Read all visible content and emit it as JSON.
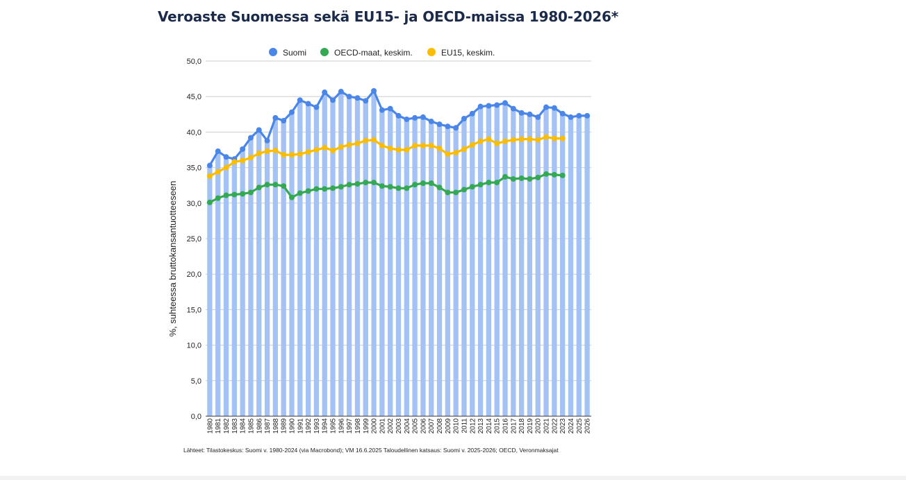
{
  "page": {
    "title": "Veroaste Suomessa sekä EU15- ja OECD-maissa 1980-2026*",
    "source": "Lähteet: Tilastokeskus: Suomi v. 1980-2024 (via Macrobond); VM 16.6.2025 Taloudellinen katsaus: Suomi v. 2025-2026; OECD, Veronmaksajat"
  },
  "colors": {
    "suomi": "#4a86e8",
    "oecd": "#34a853",
    "eu15": "#fbbc04",
    "bar_fill": "#a4c2f4",
    "grid": "#cccccc",
    "axis": "#333333",
    "title": "#1b2a4a"
  },
  "chart_data": {
    "type": "line",
    "title": "Veroaste Suomessa sekä EU15- ja OECD-maissa 1980-2026*",
    "xlabel": "",
    "ylabel": "%, suhteessa bruttokansantuotteeseen",
    "ylim": [
      0,
      50
    ],
    "yticks": [
      "0,0",
      "5,0",
      "10,0",
      "15,0",
      "20,0",
      "25,0",
      "30,0",
      "35,0",
      "40,0",
      "45,0",
      "50,0"
    ],
    "grid": true,
    "legend_position": "top",
    "categories": [
      "1980",
      "1981",
      "1982",
      "1983",
      "1984",
      "1985",
      "1986",
      "1987",
      "1988",
      "1989",
      "1990",
      "1991",
      "1992",
      "1993",
      "1994",
      "1995",
      "1996",
      "1997",
      "1998",
      "1999",
      "2000",
      "2001",
      "2002",
      "2003",
      "2004",
      "2005",
      "2006",
      "2007",
      "2008",
      "2009",
      "2010",
      "2011",
      "2012",
      "2013",
      "2014",
      "2015",
      "2016",
      "2017",
      "2018",
      "2019",
      "2020",
      "2021",
      "2022",
      "2023",
      "2024",
      "2025",
      "2026"
    ],
    "bars": {
      "series": "Suomi",
      "values": [
        35.3,
        37.3,
        36.5,
        36.2,
        37.6,
        39.2,
        40.3,
        38.8,
        42.0,
        41.6,
        42.8,
        44.5,
        44.0,
        43.5,
        45.6,
        44.5,
        45.7,
        45.0,
        44.8,
        44.4,
        45.8,
        43.1,
        43.3,
        42.3,
        41.8,
        42.0,
        42.1,
        41.5,
        41.1,
        40.8,
        40.6,
        41.9,
        42.6,
        43.6,
        43.7,
        43.8,
        44.1,
        43.3,
        42.7,
        42.5,
        42.1,
        43.5,
        43.4,
        42.6,
        42.1,
        42.3,
        42.3
      ]
    },
    "series": [
      {
        "name": "Suomi",
        "values": [
          35.3,
          37.3,
          36.5,
          36.2,
          37.6,
          39.2,
          40.3,
          38.8,
          42.0,
          41.6,
          42.8,
          44.5,
          44.0,
          43.5,
          45.6,
          44.5,
          45.7,
          45.0,
          44.8,
          44.4,
          45.8,
          43.1,
          43.3,
          42.3,
          41.8,
          42.0,
          42.1,
          41.5,
          41.1,
          40.8,
          40.6,
          41.9,
          42.6,
          43.6,
          43.7,
          43.8,
          44.1,
          43.3,
          42.7,
          42.5,
          42.1,
          43.5,
          43.4,
          42.6,
          42.1,
          42.3,
          42.3
        ]
      },
      {
        "name": "OECD-maat, keskim.",
        "values": [
          30.1,
          30.7,
          31.1,
          31.2,
          31.3,
          31.5,
          32.2,
          32.6,
          32.6,
          32.4,
          30.8,
          31.4,
          31.7,
          32.0,
          32.0,
          32.1,
          32.3,
          32.6,
          32.7,
          32.9,
          32.9,
          32.4,
          32.3,
          32.1,
          32.1,
          32.6,
          32.8,
          32.8,
          32.2,
          31.5,
          31.5,
          31.9,
          32.3,
          32.6,
          32.9,
          32.9,
          33.7,
          33.4,
          33.5,
          33.4,
          33.6,
          34.1,
          34.0,
          33.9,
          null,
          null,
          null
        ]
      },
      {
        "name": "EU15, keskim.",
        "values": [
          33.8,
          34.4,
          35.0,
          35.8,
          36.0,
          36.4,
          37.0,
          37.3,
          37.4,
          36.8,
          36.8,
          36.9,
          37.2,
          37.5,
          37.8,
          37.4,
          37.9,
          38.2,
          38.4,
          38.8,
          38.9,
          38.1,
          37.7,
          37.5,
          37.5,
          38.1,
          38.1,
          38.1,
          37.7,
          36.9,
          37.1,
          37.6,
          38.2,
          38.7,
          39.0,
          38.4,
          38.7,
          38.9,
          39.0,
          39.0,
          38.9,
          39.3,
          39.1,
          39.1,
          null,
          null,
          null
        ]
      }
    ]
  }
}
